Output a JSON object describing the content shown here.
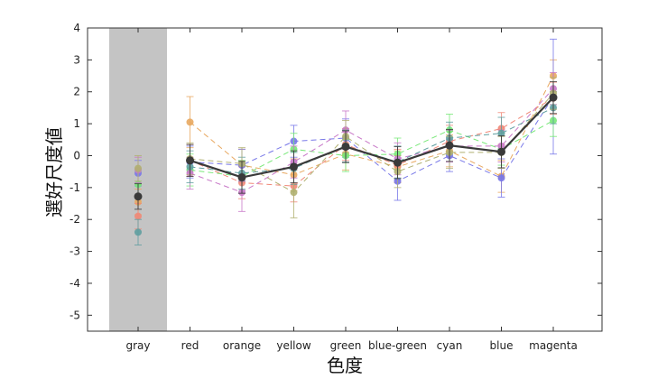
{
  "chart_data": {
    "type": "line",
    "xlabel": "色度",
    "ylabel": "選好尺度値",
    "categories": [
      "gray",
      "red",
      "orange",
      "yellow",
      "green",
      "blue-green",
      "cyan",
      "blue",
      "magenta"
    ],
    "ylim": [
      -5.5,
      4
    ],
    "yticks": [
      -5,
      -4,
      -3,
      -2,
      -1,
      0,
      1,
      2,
      3,
      4
    ],
    "grid": false,
    "legend": "none",
    "shaded_category": "gray",
    "shade_color": "#c4c4c4",
    "mean_series": {
      "color": "#3a3a3a",
      "values": [
        -1.28,
        -0.15,
        -0.68,
        -0.35,
        0.28,
        -0.22,
        0.32,
        0.12,
        1.82
      ],
      "error": [
        0.4,
        0.5,
        0.5,
        0.5,
        0.5,
        0.5,
        0.5,
        0.5,
        0.5
      ]
    },
    "series": [
      {
        "color": "#e8a860",
        "values": [
          -1.45,
          1.05,
          -0.3,
          -0.6,
          0.05,
          -0.35,
          0.15,
          -0.65,
          2.5
        ],
        "error": [
          0.4,
          0.8,
          0.5,
          0.5,
          0.5,
          0.5,
          0.5,
          0.5,
          0.5
        ]
      },
      {
        "color": "#f08878",
        "values": [
          -1.9,
          -0.15,
          -0.85,
          -0.95,
          0.35,
          -0.3,
          0.45,
          0.85,
          1.8
        ],
        "error": [
          0.4,
          0.5,
          0.5,
          0.5,
          0.5,
          0.5,
          0.5,
          0.5,
          0.5
        ]
      },
      {
        "color": "#7878e8",
        "values": [
          -0.55,
          -0.2,
          -0.3,
          0.45,
          0.55,
          -0.8,
          0.0,
          -0.7,
          1.85
        ],
        "error": [
          0.4,
          0.5,
          0.5,
          0.5,
          0.6,
          0.6,
          0.5,
          0.6,
          1.8
        ]
      },
      {
        "color": "#78e878",
        "values": [
          -0.9,
          -0.45,
          -0.65,
          0.2,
          0.0,
          0.05,
          0.8,
          0.2,
          1.1
        ],
        "error": [
          0.4,
          0.5,
          0.5,
          0.5,
          0.5,
          0.5,
          0.5,
          0.5,
          0.5
        ]
      },
      {
        "color": "#c878c8",
        "values": [
          -0.45,
          -0.55,
          -1.15,
          -0.2,
          0.8,
          -0.1,
          0.3,
          0.3,
          2.1
        ],
        "error": [
          0.4,
          0.5,
          0.6,
          0.5,
          0.6,
          0.5,
          0.5,
          0.5,
          0.5
        ]
      },
      {
        "color": "#5f9ea0",
        "values": [
          -2.4,
          -0.35,
          -0.55,
          -0.4,
          0.3,
          -0.2,
          0.55,
          0.7,
          1.5
        ],
        "error": [
          0.4,
          0.5,
          0.5,
          0.5,
          0.5,
          0.5,
          0.5,
          0.5,
          0.5
        ]
      },
      {
        "color": "#b0b070",
        "values": [
          -0.4,
          -0.1,
          -0.25,
          -1.15,
          0.6,
          -0.5,
          0.1,
          0.1,
          1.95
        ],
        "error": [
          0.4,
          0.5,
          0.5,
          0.8,
          0.5,
          0.5,
          0.5,
          0.5,
          0.5
        ]
      }
    ]
  }
}
